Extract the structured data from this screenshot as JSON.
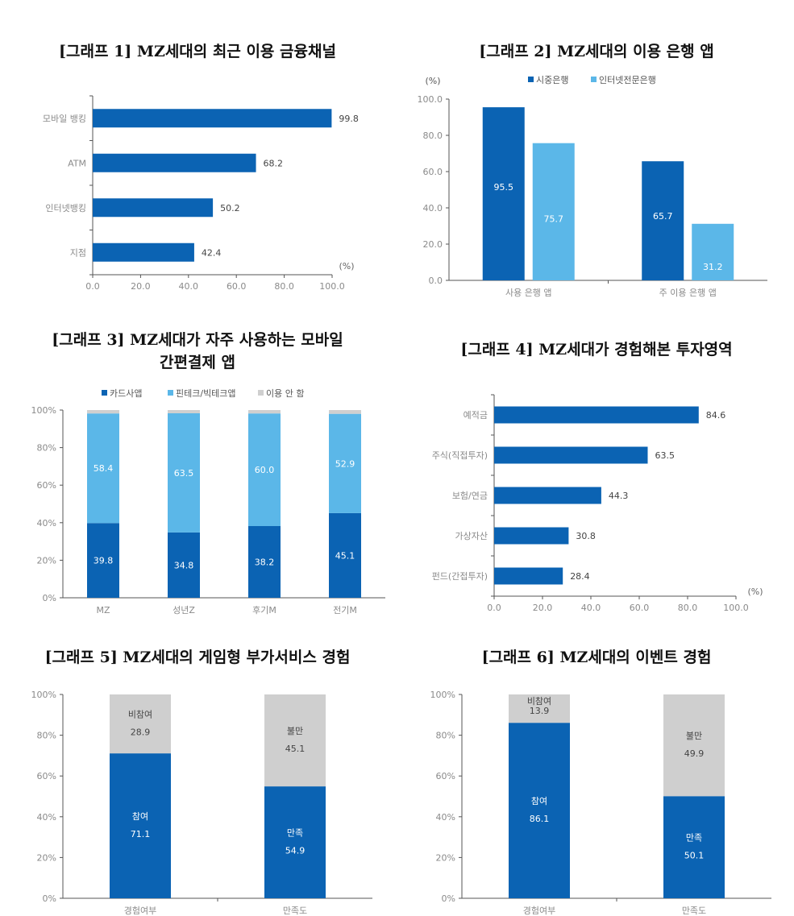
{
  "colors": {
    "dark": "#0b63b3",
    "light": "#5bb7e8",
    "gray": "#cfcfcf",
    "axis": "#555555",
    "label": "#8a8a8a"
  },
  "chart_data": [
    {
      "id": "g1",
      "type": "bar",
      "orientation": "horizontal",
      "title": "[그래프 1] MZ세대의 최근 이용 금융채널",
      "categories": [
        "모바일 뱅킹",
        "ATM",
        "인터넷뱅킹",
        "지점"
      ],
      "values": [
        99.8,
        68.2,
        50.2,
        42.4
      ],
      "value_labels": [
        "99.8",
        "68.2",
        "50.2",
        "42.4"
      ],
      "xlim": [
        0,
        100
      ],
      "ticks": [
        "0.0",
        "20.0",
        "40.0",
        "60.0",
        "80.0",
        "100.0"
      ],
      "unit": "(%)"
    },
    {
      "id": "g2",
      "type": "bar",
      "orientation": "vertical",
      "title": "[그래프 2] MZ세대의 이용 은행 앱",
      "categories": [
        "사용 은행 앱",
        "주 이용 은행 앱"
      ],
      "series": [
        {
          "name": "시중은행",
          "values": [
            95.5,
            65.7
          ],
          "labels": [
            "95.5",
            "65.7"
          ]
        },
        {
          "name": "인터넷전문은행",
          "values": [
            75.7,
            31.2
          ],
          "labels": [
            "75.7",
            "31.2"
          ]
        }
      ],
      "ylim": [
        0,
        100
      ],
      "ticks": [
        "0.0",
        "20.0",
        "40.0",
        "60.0",
        "80.0",
        "100.0"
      ],
      "unit": "(%)",
      "legend": "top"
    },
    {
      "id": "g3",
      "type": "bar",
      "stacked": true,
      "title": "[그래프 3] MZ세대가 자주 사용하는 모바일 간편결제 앱",
      "title_lines": [
        "[그래프 3] MZ세대가 자주 사용하는 모바일",
        "간편결제 앱"
      ],
      "categories": [
        "MZ",
        "성년Z",
        "후기M",
        "전기M"
      ],
      "series": [
        {
          "name": "카드사앱",
          "values": [
            39.8,
            34.8,
            38.2,
            45.1
          ],
          "labels": [
            "39.8",
            "34.8",
            "38.2",
            "45.1"
          ]
        },
        {
          "name": "핀테크/빅테크앱",
          "values": [
            58.4,
            63.5,
            60.0,
            52.9
          ],
          "labels": [
            "58.4",
            "63.5",
            "60.0",
            "52.9"
          ]
        },
        {
          "name": "이용 안 함",
          "values": [
            1.8,
            1.7,
            1.8,
            2.0
          ],
          "labels": []
        }
      ],
      "ylim": [
        0,
        100
      ],
      "ticks": [
        "0%",
        "20%",
        "40%",
        "60%",
        "80%",
        "100%"
      ],
      "legend": "top"
    },
    {
      "id": "g4",
      "type": "bar",
      "orientation": "horizontal",
      "title": "[그래프 4] MZ세대가 경험해본 투자영역",
      "categories": [
        "예적금",
        "주식(직접투자)",
        "보험/연금",
        "가상자산",
        "펀드(간접투자)"
      ],
      "values": [
        84.6,
        63.5,
        44.3,
        30.8,
        28.4
      ],
      "value_labels": [
        "84.6",
        "63.5",
        "44.3",
        "30.8",
        "28.4"
      ],
      "xlim": [
        0,
        100
      ],
      "ticks": [
        "0.0",
        "20.0",
        "40.0",
        "60.0",
        "80.0",
        "100.0"
      ],
      "unit": "(%)"
    },
    {
      "id": "g5",
      "type": "bar",
      "stacked": true,
      "title": "[그래프 5] MZ세대의 게임형 부가서비스 경험",
      "categories": [
        "경험여부",
        "만족도"
      ],
      "segments": [
        [
          {
            "name": "참여",
            "value": 71.1,
            "label": "71.1",
            "color": "dark"
          },
          {
            "name": "비참여",
            "value": 28.9,
            "label": "28.9",
            "color": "gray"
          }
        ],
        [
          {
            "name": "만족",
            "value": 54.9,
            "label": "54.9",
            "color": "dark"
          },
          {
            "name": "불만",
            "value": 45.1,
            "label": "45.1",
            "color": "gray"
          }
        ]
      ],
      "ylim": [
        0,
        100
      ],
      "ticks": [
        "0%",
        "20%",
        "40%",
        "60%",
        "80%",
        "100%"
      ]
    },
    {
      "id": "g6",
      "type": "bar",
      "stacked": true,
      "title": "[그래프 6] MZ세대의 이벤트 경험",
      "categories": [
        "경험여부",
        "만족도"
      ],
      "segments": [
        [
          {
            "name": "참여",
            "value": 86.1,
            "label": "86.1",
            "color": "dark"
          },
          {
            "name": "비참여",
            "value": 13.9,
            "label": "13.9",
            "color": "gray"
          }
        ],
        [
          {
            "name": "만족",
            "value": 50.1,
            "label": "50.1",
            "color": "dark"
          },
          {
            "name": "불만",
            "value": 49.9,
            "label": "49.9",
            "color": "gray"
          }
        ]
      ],
      "ylim": [
        0,
        100
      ],
      "ticks": [
        "0%",
        "20%",
        "40%",
        "60%",
        "80%",
        "100%"
      ]
    }
  ]
}
